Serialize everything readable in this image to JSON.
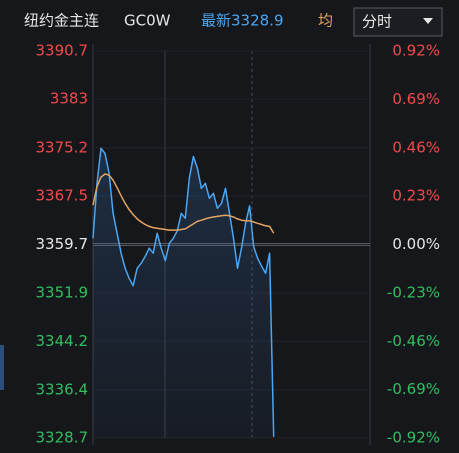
{
  "chart_data": {
    "type": "line",
    "title": "纽约金主连",
    "code": "GC0W",
    "latest": "最新3328.9",
    "period": "分时",
    "series": [
      {
        "color": "#4aa6f2",
        "values": [
          3360.7,
          3369.5,
          3375.1,
          3374.3,
          3371.1,
          3364.7,
          3361.5,
          3358.3,
          3355.9,
          3354.3,
          3353.1,
          3355.9,
          3356.7,
          3357.8,
          3359.1,
          3358.3,
          3361.5,
          3359.1,
          3357.1,
          3359.9,
          3360.7,
          3361.9,
          3364.7,
          3363.9,
          3370.3,
          3373.8,
          3371.9,
          3368.7,
          3369.5,
          3367.1,
          3367.9,
          3365.5,
          3366.3,
          3368.7,
          3364.7,
          3360.7,
          3355.9,
          3359.1,
          3363.1,
          3365.9,
          3359.4,
          3357.5,
          3356.2,
          3355.1,
          3358.3,
          3328.9,
          null,
          null,
          null,
          null,
          null,
          null,
          null,
          null,
          null,
          null,
          null,
          null,
          null,
          null,
          null,
          null,
          null,
          null,
          null,
          null,
          null,
          null,
          null,
          null
        ]
      },
      {
        "name": "均",
        "color": "#e3a462",
        "values": [
          3366.0,
          3369.0,
          3370.5,
          3371.0,
          3370.8,
          3370.0,
          3368.8,
          3367.5,
          3366.3,
          3365.3,
          3364.5,
          3363.8,
          3363.3,
          3362.9,
          3362.6,
          3362.4,
          3362.3,
          3362.2,
          3362.1,
          3362.0,
          3362.0,
          3362.0,
          3362.1,
          3362.2,
          3362.6,
          3363.0,
          3363.4,
          3363.6,
          3363.8,
          3364.0,
          3364.1,
          3364.2,
          3364.3,
          3364.4,
          3364.3,
          3364.1,
          3363.8,
          3363.6,
          3363.5,
          3363.5,
          3363.3,
          3363.1,
          3362.9,
          3362.7,
          3362.6,
          3361.5,
          null,
          null,
          null,
          null,
          null,
          null,
          null,
          null,
          null,
          null,
          null,
          null,
          null,
          null,
          null,
          null,
          null,
          null,
          null,
          null,
          null,
          null,
          null,
          null
        ]
      }
    ],
    "ylim": [
      3328.7,
      3390.7
    ],
    "yticks": [
      3390.7,
      3383.0,
      3375.2,
      3367.5,
      3359.7,
      3351.9,
      3344.2,
      3336.4,
      3328.7
    ],
    "y2lim": [
      -0.92,
      0.92
    ],
    "y2ticks": [
      {
        "value": 0.92,
        "label": "0.92%"
      },
      {
        "value": 0.69,
        "label": "0.69%"
      },
      {
        "value": 0.46,
        "label": "0.46%"
      },
      {
        "value": 0.23,
        "label": "0.23%"
      },
      {
        "value": 0,
        "label": "0.00%"
      },
      {
        "value": -0.23,
        "label": "-0.23%"
      },
      {
        "value": -0.46,
        "label": "-0.46%"
      },
      {
        "value": -0.69,
        "label": "-0.69%"
      },
      {
        "value": -0.92,
        "label": "-0.92%"
      }
    ],
    "up_color": "#f04a4a",
    "down_color": "#2fbf5f",
    "flat_color": "#e6e6e6"
  }
}
